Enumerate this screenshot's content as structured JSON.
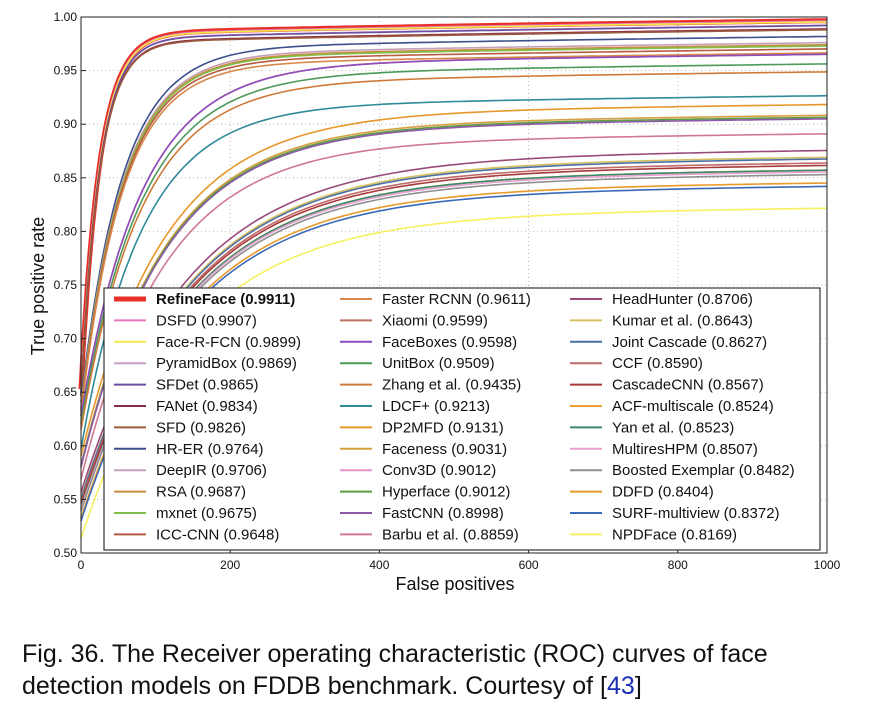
{
  "chart_data": {
    "type": "line",
    "xlabel": "False positives",
    "ylabel": "True positive rate",
    "xlim": [
      0,
      1000
    ],
    "ylim": [
      0.5,
      1.0
    ],
    "x_ticks": [
      "0",
      "200",
      "400",
      "600",
      "800",
      "1000"
    ],
    "y_ticks": [
      "0.50",
      "0.55",
      "0.60",
      "0.65",
      "0.70",
      "0.75",
      "0.80",
      "0.85",
      "0.90",
      "0.95",
      "1.00"
    ],
    "grid": true,
    "legend_position": "lower-right, 3 columns",
    "series": [
      {
        "name": "RefineFace (0.9911)",
        "color": "#e8302a",
        "final": 0.9911,
        "bold": true
      },
      {
        "name": "DSFD (0.9907)",
        "color": "#e377c2",
        "final": 0.9907
      },
      {
        "name": "Face-R-FCN (0.9899)",
        "color": "#f5e94a",
        "final": 0.9899
      },
      {
        "name": "PyramidBox (0.9869)",
        "color": "#c6a0c8",
        "final": 0.9869
      },
      {
        "name": "SFDet (0.9865)",
        "color": "#6a4ea0",
        "final": 0.9865
      },
      {
        "name": "FANet (0.9834)",
        "color": "#8a2d4a",
        "final": 0.9834
      },
      {
        "name": "SFD (0.9826)",
        "color": "#9b5a3c",
        "final": 0.9826
      },
      {
        "name": "HR-ER (0.9764)",
        "color": "#3b4f8c",
        "final": 0.9764
      },
      {
        "name": "DeepIR (0.9706)",
        "color": "#c4a0b8",
        "final": 0.9706
      },
      {
        "name": "RSA (0.9687)",
        "color": "#cc8a3c",
        "final": 0.9687
      },
      {
        "name": "mxnet (0.9675)",
        "color": "#7fbf4a",
        "final": 0.9675
      },
      {
        "name": "ICC-CNN (0.9648)",
        "color": "#b85a40",
        "final": 0.9648
      },
      {
        "name": "Faster RCNN (0.9611)",
        "color": "#d8874a",
        "final": 0.9611
      },
      {
        "name": "Xiaomi (0.9599)",
        "color": "#b87060",
        "final": 0.9599
      },
      {
        "name": "FaceBoxes (0.9598)",
        "color": "#8e4cc0",
        "final": 0.9598
      },
      {
        "name": "UnitBox (0.9509)",
        "color": "#4c9a5a",
        "final": 0.9509
      },
      {
        "name": "Zhang et al. (0.9435)",
        "color": "#d07a3a",
        "final": 0.9435
      },
      {
        "name": "LDCF+ (0.9213)",
        "color": "#2f8a9a",
        "final": 0.9213
      },
      {
        "name": "DP2MFD (0.9131)",
        "color": "#e8972a",
        "final": 0.9131
      },
      {
        "name": "Faceness (0.9031)",
        "color": "#d4a040",
        "final": 0.9031
      },
      {
        "name": "Conv3D (0.9012)",
        "color": "#e890c8",
        "final": 0.9012
      },
      {
        "name": "Hyperface (0.9012)",
        "color": "#5aa040",
        "final": 0.9012
      },
      {
        "name": "FastCNN (0.8998)",
        "color": "#8c5aa8",
        "final": 0.8998
      },
      {
        "name": "Barbu et al. (0.8859)",
        "color": "#d07890",
        "final": 0.8859
      },
      {
        "name": "HeadHunter (0.8706)",
        "color": "#9a4a7a",
        "final": 0.8706
      },
      {
        "name": "Kumar et al. (0.8643)",
        "color": "#d8c060",
        "final": 0.8643
      },
      {
        "name": "Joint Cascade (0.8627)",
        "color": "#4a70a8",
        "final": 0.8627
      },
      {
        "name": "CCF (0.8590)",
        "color": "#c06a6a",
        "final": 0.859
      },
      {
        "name": "CascadeCNN (0.8567)",
        "color": "#a83a3a",
        "final": 0.8567
      },
      {
        "name": "ACF-multiscale (0.8524)",
        "color": "#f0a030",
        "final": 0.8524
      },
      {
        "name": "Yan et al. (0.8523)",
        "color": "#3a8a6a",
        "final": 0.8523
      },
      {
        "name": "MultiresHPM (0.8507)",
        "color": "#e8a0d0",
        "final": 0.8507
      },
      {
        "name": "Boosted Exemplar (0.8482)",
        "color": "#909090",
        "final": 0.8482
      },
      {
        "name": "DDFD (0.8404)",
        "color": "#e89a2a",
        "final": 0.8404
      },
      {
        "name": "SURF-multiview (0.8372)",
        "color": "#3a6ab8",
        "final": 0.8372
      },
      {
        "name": "NPDFace (0.8169)",
        "color": "#f8f060",
        "final": 0.8169
      }
    ]
  },
  "caption": {
    "text": "Fig. 36. The Receiver operating characteristic (ROC) curves of face detection models on FDDB benchmark. Courtesy of [",
    "ref": "43",
    "close": "]"
  }
}
